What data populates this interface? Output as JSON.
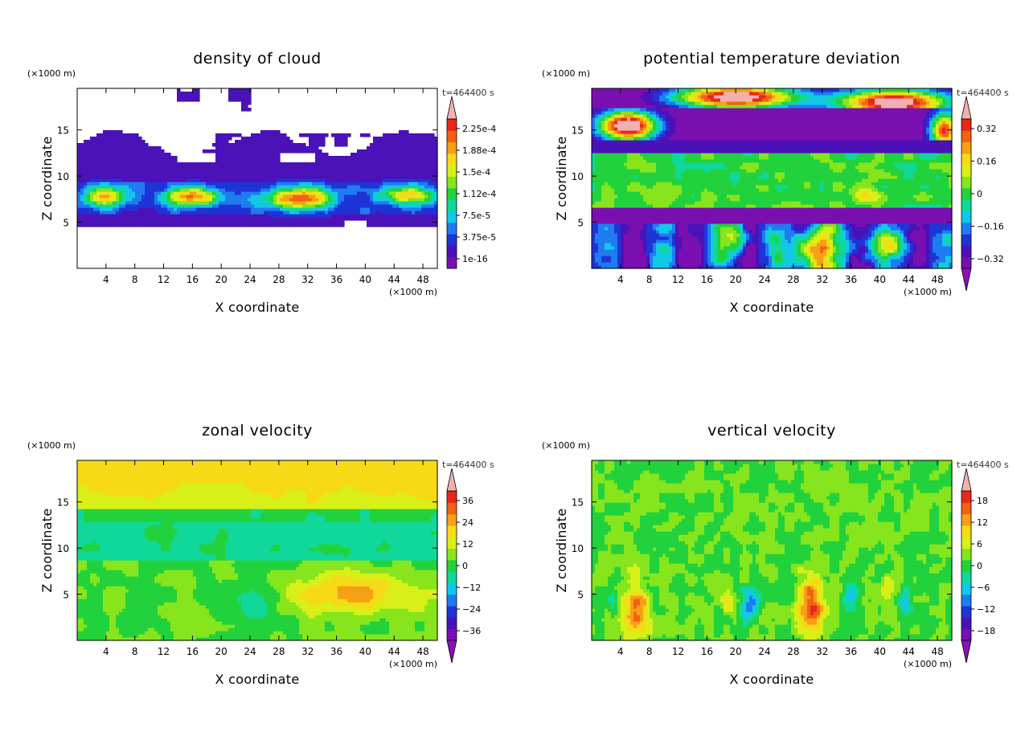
{
  "chart_data": [
    {
      "type": "heatmap",
      "title": "density of cloud",
      "xlabel": "X coordinate",
      "ylabel": "Z coordinate",
      "x_unit": "(×1000 m)",
      "z_unit": "(×1000 m)",
      "time_label": "t=464400 s",
      "xlim": [
        0,
        50
      ],
      "ylim": [
        0,
        19.5
      ],
      "x_ticks": [
        4,
        8,
        12,
        16,
        20,
        24,
        28,
        32,
        36,
        40,
        44,
        48
      ],
      "y_ticks": [
        5,
        10,
        15
      ],
      "colorbar": {
        "labels": [
          "2.25e-4",
          "1.88e-4",
          "1.5e-4",
          "1.12e-4",
          "7.5e-5",
          "3.75e-5",
          "1e-16"
        ],
        "extend": "max"
      },
      "field": "cloud"
    },
    {
      "type": "heatmap",
      "title": "potential temperature deviation",
      "xlabel": "X coordinate",
      "ylabel": "Z coordinate",
      "x_unit": "(×1000 m)",
      "z_unit": "(×1000 m)",
      "time_label": "t=464400 s",
      "xlim": [
        0,
        50
      ],
      "ylim": [
        0,
        19.5
      ],
      "x_ticks": [
        4,
        8,
        12,
        16,
        20,
        24,
        28,
        32,
        36,
        40,
        44,
        48
      ],
      "y_ticks": [
        5,
        10,
        15
      ],
      "colorbar": {
        "labels": [
          "0.32",
          "0.16",
          "0",
          "−0.16",
          "−0.32"
        ],
        "extend": "both"
      },
      "field": "theta"
    },
    {
      "type": "heatmap",
      "title": "zonal velocity",
      "xlabel": "X coordinate",
      "ylabel": "Z coordinate",
      "x_unit": "(×1000 m)",
      "z_unit": "(×1000 m)",
      "time_label": "t=464400 s",
      "xlim": [
        0,
        50
      ],
      "ylim": [
        0,
        19.5
      ],
      "x_ticks": [
        4,
        8,
        12,
        16,
        20,
        24,
        28,
        32,
        36,
        40,
        44,
        48
      ],
      "y_ticks": [
        5,
        10,
        15
      ],
      "colorbar": {
        "labels": [
          "36",
          "24",
          "12",
          "0",
          "−12",
          "−24",
          "−36"
        ],
        "extend": "both"
      },
      "field": "u"
    },
    {
      "type": "heatmap",
      "title": "vertical velocity",
      "xlabel": "X coordinate",
      "ylabel": "Z coordinate",
      "x_unit": "(×1000 m)",
      "z_unit": "(×1000 m)",
      "time_label": "t=464400 s",
      "xlim": [
        0,
        50
      ],
      "ylim": [
        0,
        19.5
      ],
      "x_ticks": [
        4,
        8,
        12,
        16,
        20,
        24,
        28,
        32,
        36,
        40,
        44,
        48
      ],
      "y_ticks": [
        5,
        10,
        15
      ],
      "colorbar": {
        "labels": [
          "18",
          "12",
          "6",
          "0",
          "−6",
          "−12",
          "−18"
        ],
        "extend": "both"
      },
      "field": "w"
    }
  ],
  "colors": {
    "scale": [
      "#7a0fb0",
      "#4a12b8",
      "#1f34d6",
      "#1e7cf0",
      "#12c8e8",
      "#10d89a",
      "#22d23c",
      "#86e51c",
      "#d8f018",
      "#f6da16",
      "#f5a016",
      "#f26212",
      "#e82818",
      "#f4b0b0"
    ]
  }
}
